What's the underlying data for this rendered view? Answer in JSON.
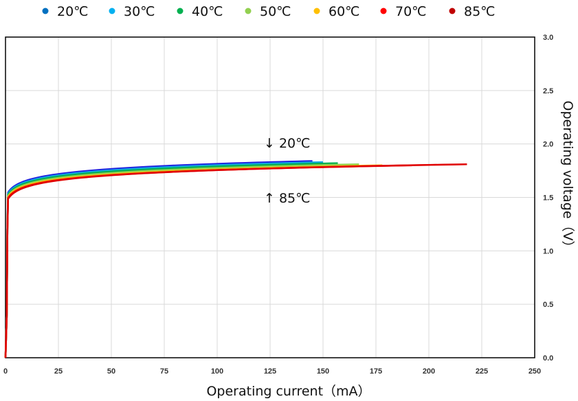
{
  "chart_data": {
    "type": "line",
    "title": "",
    "xlabel": "Operating current（mA）",
    "ylabel": "Operating voltage（V）",
    "xlim": [
      0,
      250
    ],
    "ylim": [
      0,
      3.0
    ],
    "x_ticks": [
      "0",
      "25",
      "50",
      "75",
      "100",
      "125",
      "150",
      "175",
      "200",
      "225",
      "250"
    ],
    "y_ticks": [
      "0.0",
      "0.5",
      "1.0",
      "1.5",
      "2.0",
      "2.5",
      "3.0"
    ],
    "grid": true,
    "legend_position": "top",
    "annotations": [
      "↓ 20℃",
      "↑ 85℃"
    ],
    "series": [
      {
        "name": "20℃",
        "legend_color": "#0070c0",
        "line_color": "#1f1fe0",
        "max_current": 145,
        "voltage_at_max": 1.84,
        "offset": 0.04
      },
      {
        "name": "30℃",
        "legend_color": "#00b0f0",
        "line_color": "#10a8e0",
        "max_current": 150,
        "voltage_at_max": 1.83,
        "offset": 0.03
      },
      {
        "name": "40℃",
        "legend_color": "#00b050",
        "line_color": "#00b050",
        "max_current": 157,
        "voltage_at_max": 1.82,
        "offset": 0.02
      },
      {
        "name": "50℃",
        "legend_color": "#92d050",
        "line_color": "#92d050",
        "max_current": 167,
        "voltage_at_max": 1.81,
        "offset": 0.01
      },
      {
        "name": "60℃",
        "legend_color": "#ffc000",
        "line_color": "#ffc000",
        "max_current": 178,
        "voltage_at_max": 1.8,
        "offset": 0.0
      },
      {
        "name": "70℃",
        "legend_color": "#ff0000",
        "line_color": "#ff0000",
        "max_current": 192,
        "voltage_at_max": 1.8,
        "offset": -0.01
      },
      {
        "name": "85℃",
        "legend_color": "#c00000",
        "line_color": "#e00000",
        "max_current": 218,
        "voltage_at_max": 1.81,
        "offset": -0.02
      }
    ]
  }
}
